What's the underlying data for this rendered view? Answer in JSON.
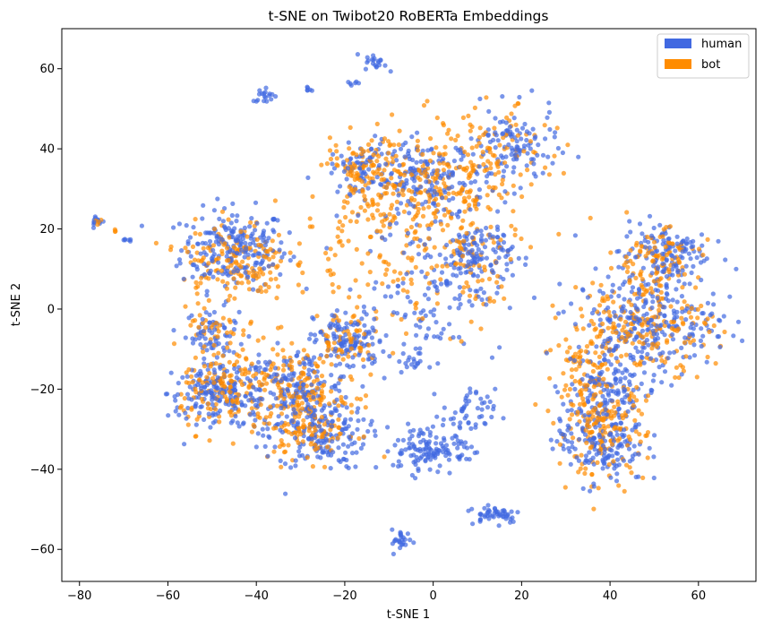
{
  "chart_data": {
    "type": "scatter",
    "title": "t-SNE on Twibot20 RoBERTa Embeddings",
    "xlabel": "t-SNE 1",
    "ylabel": "t-SNE 2",
    "xlim": [
      -84,
      73
    ],
    "ylim": [
      -68,
      70
    ],
    "xticks": [
      -80,
      -60,
      -40,
      -20,
      0,
      20,
      40,
      60
    ],
    "yticks": [
      -60,
      -40,
      -20,
      0,
      20,
      40,
      60
    ],
    "xtick_labels": [
      "−80",
      "−60",
      "−40",
      "−20",
      "0",
      "20",
      "40",
      "60"
    ],
    "ytick_labels": [
      "−60",
      "−40",
      "−20",
      "0",
      "20",
      "40",
      "60"
    ],
    "grid": false,
    "legend_position": "top-right",
    "series": [
      {
        "name": "human",
        "color": "#4169E1",
        "clusters": [
          {
            "cx": -45,
            "cy": 15,
            "sx": 6,
            "sy": 5,
            "n": 220
          },
          {
            "cx": -50,
            "cy": -6,
            "sx": 3,
            "sy": 3,
            "n": 60
          },
          {
            "cx": -52,
            "cy": -21,
            "sx": 4,
            "sy": 3,
            "n": 80
          },
          {
            "cx": -45,
            "cy": -21,
            "sx": 5,
            "sy": 5,
            "n": 120
          },
          {
            "cx": -30,
            "cy": -22,
            "sx": 6,
            "sy": 6,
            "n": 200
          },
          {
            "cx": -25,
            "cy": -32,
            "sx": 5,
            "sy": 4,
            "n": 120
          },
          {
            "cx": -19,
            "cy": -8,
            "sx": 4,
            "sy": 4,
            "n": 120
          },
          {
            "cx": -17,
            "cy": 35,
            "sx": 3,
            "sy": 3,
            "n": 60
          },
          {
            "cx": -2,
            "cy": 32,
            "sx": 7,
            "sy": 5,
            "n": 180
          },
          {
            "cx": 10,
            "cy": 14,
            "sx": 4,
            "sy": 4,
            "n": 110
          },
          {
            "cx": 18,
            "cy": 40,
            "sx": 5,
            "sy": 5,
            "n": 120
          },
          {
            "cx": 0,
            "cy": 5,
            "sx": 8,
            "sy": 8,
            "n": 120
          },
          {
            "cx": -5,
            "cy": -13,
            "sx": 1.5,
            "sy": 1.5,
            "n": 20
          },
          {
            "cx": 8,
            "cy": -26,
            "sx": 3,
            "sy": 3,
            "n": 50
          },
          {
            "cx": -3,
            "cy": -35,
            "sx": 3,
            "sy": 3,
            "n": 90
          },
          {
            "cx": 5,
            "cy": -35,
            "sx": 2.5,
            "sy": 2.5,
            "n": 40
          },
          {
            "cx": 14,
            "cy": -51,
            "sx": 3,
            "sy": 1.2,
            "n": 50
          },
          {
            "cx": -7,
            "cy": -58,
            "sx": 1.2,
            "sy": 1.5,
            "n": 25
          },
          {
            "cx": -13,
            "cy": 61.5,
            "sx": 1.2,
            "sy": 1,
            "n": 20
          },
          {
            "cx": -38,
            "cy": 53.5,
            "sx": 1.5,
            "sy": 1,
            "n": 18
          },
          {
            "cx": -28,
            "cy": 54.5,
            "sx": 0.8,
            "sy": 0.6,
            "n": 6
          },
          {
            "cx": -18,
            "cy": 56.5,
            "sx": 0.8,
            "sy": 0.4,
            "n": 6
          },
          {
            "cx": -76,
            "cy": 22,
            "sx": 0.8,
            "sy": 0.8,
            "n": 12
          },
          {
            "cx": -69,
            "cy": 17.3,
            "sx": 0.8,
            "sy": 0.2,
            "n": 6
          },
          {
            "cx": 48,
            "cy": -3,
            "sx": 8,
            "sy": 6,
            "n": 260
          },
          {
            "cx": 52,
            "cy": 14,
            "sx": 5,
            "sy": 4,
            "n": 130
          },
          {
            "cx": 38,
            "cy": -32,
            "sx": 5,
            "sy": 6,
            "n": 200
          },
          {
            "cx": 41,
            "cy": -18,
            "sx": 5,
            "sy": 4,
            "n": 100
          }
        ]
      },
      {
        "name": "bot",
        "color": "#FF8C00",
        "clusters": [
          {
            "cx": -45,
            "cy": 12,
            "sx": 6,
            "sy": 5,
            "n": 170
          },
          {
            "cx": -50,
            "cy": -6,
            "sx": 3,
            "sy": 3,
            "n": 30
          },
          {
            "cx": -47,
            "cy": -20,
            "sx": 5,
            "sy": 5,
            "n": 140
          },
          {
            "cx": -32,
            "cy": -20,
            "sx": 6,
            "sy": 6,
            "n": 160
          },
          {
            "cx": -27,
            "cy": -30,
            "sx": 5,
            "sy": 4,
            "n": 100
          },
          {
            "cx": -20,
            "cy": -8,
            "sx": 4,
            "sy": 4,
            "n": 60
          },
          {
            "cx": -17,
            "cy": 35,
            "sx": 3,
            "sy": 3,
            "n": 60
          },
          {
            "cx": -3,
            "cy": 30,
            "sx": 9,
            "sy": 8,
            "n": 260
          },
          {
            "cx": 15,
            "cy": 38,
            "sx": 6,
            "sy": 6,
            "n": 90
          },
          {
            "cx": -5,
            "cy": 15,
            "sx": 14,
            "sy": 10,
            "n": 150
          },
          {
            "cx": 10,
            "cy": 12,
            "sx": 4,
            "sy": 4,
            "n": 40
          },
          {
            "cx": -72,
            "cy": 19.5,
            "sx": 0.4,
            "sy": 0.2,
            "n": 3
          },
          {
            "cx": -75,
            "cy": 22,
            "sx": 0.6,
            "sy": 0.6,
            "n": 4
          },
          {
            "cx": 47,
            "cy": -4,
            "sx": 8,
            "sy": 6,
            "n": 200
          },
          {
            "cx": 50,
            "cy": 12,
            "sx": 5,
            "sy": 4,
            "n": 100
          },
          {
            "cx": 38,
            "cy": -30,
            "sx": 5,
            "sy": 6,
            "n": 180
          },
          {
            "cx": 35,
            "cy": -15,
            "sx": 5,
            "sy": 5,
            "n": 60
          }
        ]
      }
    ]
  }
}
